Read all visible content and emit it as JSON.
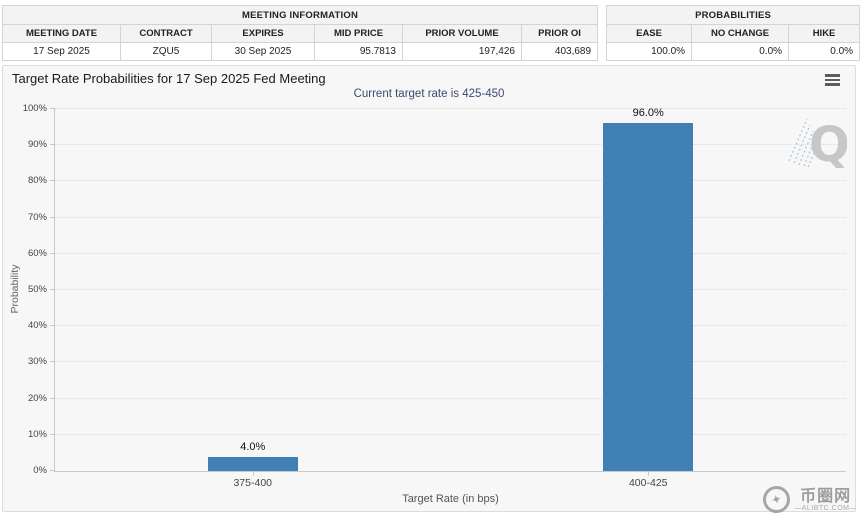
{
  "meeting_table": {
    "title": "MEETING INFORMATION",
    "headers": [
      "MEETING DATE",
      "CONTRACT",
      "EXPIRES",
      "MID PRICE",
      "PRIOR VOLUME",
      "PRIOR OI"
    ],
    "values": [
      "17 Sep 2025",
      "ZQU5",
      "30 Sep 2025",
      "95.7813",
      "197,426",
      "403,689"
    ]
  },
  "prob_table": {
    "title": "PROBABILITIES",
    "headers": [
      "EASE",
      "NO CHANGE",
      "HIKE"
    ],
    "values": [
      "100.0%",
      "0.0%",
      "0.0%"
    ]
  },
  "chart": {
    "title": "Target Rate Probabilities for 17 Sep 2025 Fed Meeting",
    "subtitle": "Current target rate is 425-450"
  },
  "chart_data": {
    "type": "bar",
    "categories": [
      "375-400",
      "400-425"
    ],
    "values": [
      4.0,
      96.0
    ],
    "value_labels": [
      "4.0%",
      "96.0%"
    ],
    "title": "Target Rate Probabilities for 17 Sep 2025 Fed Meeting",
    "subtitle": "Current target rate is 425-450",
    "xlabel": "Target Rate (in bps)",
    "ylabel": "Probability",
    "ylim": [
      0,
      100
    ],
    "ytick_step": 10,
    "ytick_suffix": "%",
    "bar_color": "#4180b4",
    "grid": "dotted horizontal gridlines",
    "legend": "none"
  },
  "watermarks": {
    "chart_logo": "Q",
    "site_name": "币圈网",
    "site_url_display": "—ALIBTC.COM—",
    "site_logo_glyph": "✦"
  },
  "colors": {
    "bar": "#4180b4",
    "panel_bg": "#f7f7f7",
    "panel_border": "#dddddd",
    "table_header_bg": "#f3f3f3",
    "table_border": "#d4d4d4",
    "subtitle_text": "#3c4a72",
    "axis_line": "#c9c9c9",
    "gridline": "#d9d9d9"
  }
}
